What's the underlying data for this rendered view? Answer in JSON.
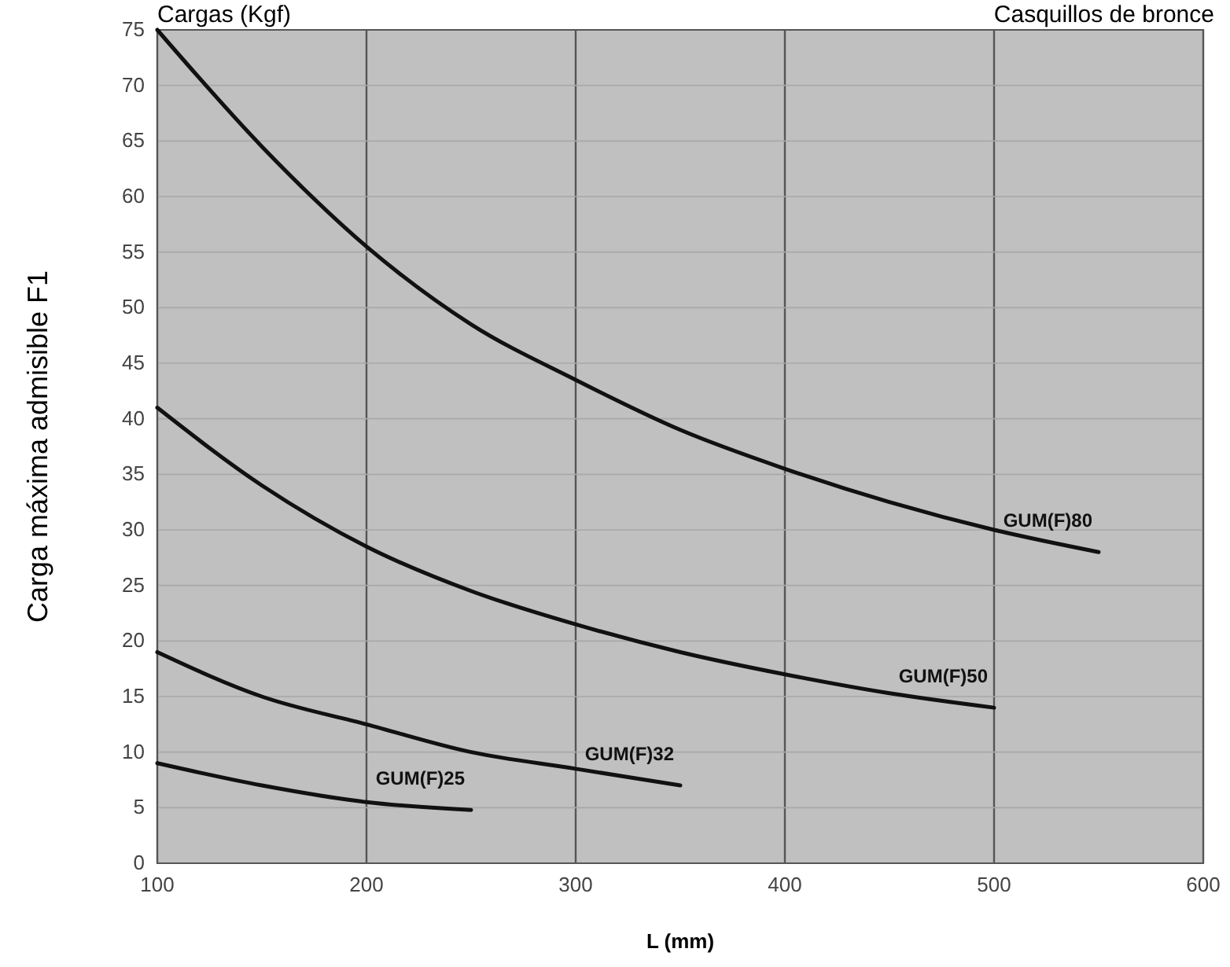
{
  "chart_data": {
    "type": "line",
    "title": "Cargas (Kgf)",
    "subtitle": "Casquillos de bronce",
    "xlabel": "L (mm)",
    "ylabel": "Carga máxima admisible F1",
    "xlim": [
      100,
      600
    ],
    "xticks": [
      100,
      200,
      300,
      400,
      500,
      600
    ],
    "ylim": [
      0,
      75
    ],
    "yticks": [
      0,
      5,
      10,
      15,
      20,
      25,
      30,
      35,
      40,
      45,
      50,
      55,
      60,
      65,
      70,
      75
    ],
    "grid": true,
    "marker": "none",
    "line_style": "solid",
    "series": [
      {
        "name": "GUM(F)80",
        "color": "#111111",
        "x": [
          100,
          150,
          200,
          250,
          300,
          350,
          400,
          450,
          500,
          550
        ],
        "values": [
          75,
          64.5,
          55.5,
          48.5,
          43.5,
          39,
          35.5,
          32.5,
          30,
          28
        ]
      },
      {
        "name": "GUM(F)50",
        "color": "#111111",
        "x": [
          100,
          150,
          200,
          250,
          300,
          350,
          400,
          450,
          500
        ],
        "values": [
          41,
          34,
          28.5,
          24.5,
          21.5,
          19,
          17,
          15.3,
          14
        ]
      },
      {
        "name": "GUM(F)32",
        "color": "#111111",
        "x": [
          100,
          150,
          200,
          250,
          300,
          350
        ],
        "values": [
          19,
          15,
          12.5,
          10,
          8.5,
          7
        ]
      },
      {
        "name": "GUM(F)25",
        "color": "#111111",
        "x": [
          100,
          150,
          200,
          250
        ],
        "values": [
          9,
          7,
          5.5,
          4.8
        ]
      }
    ]
  }
}
